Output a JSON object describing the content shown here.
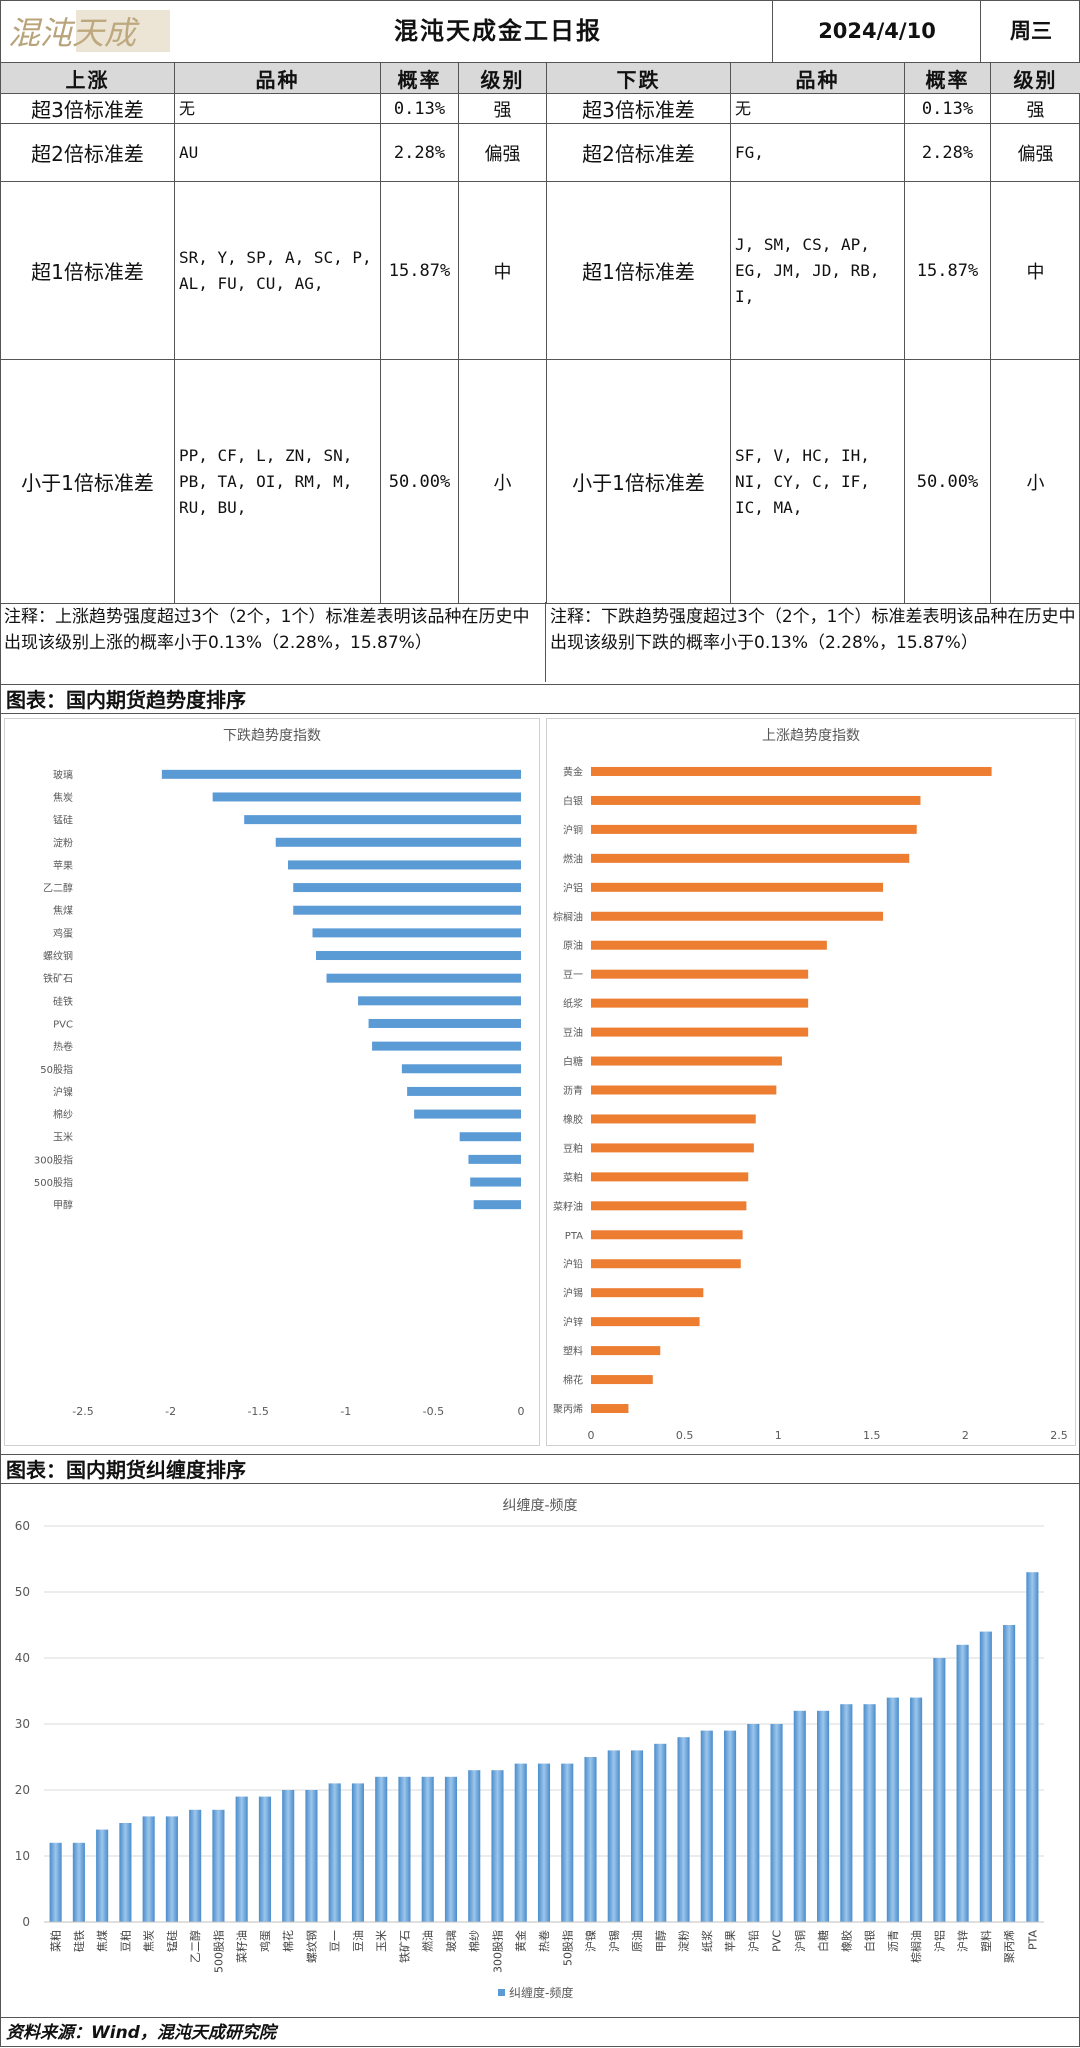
{
  "header": {
    "logo_text": "混沌天成",
    "title": "混沌天成金工日报",
    "date": "2024/4/10",
    "weekday": "周三"
  },
  "up_table": {
    "headers": [
      "上涨",
      "品种",
      "概率",
      "级别"
    ],
    "rows": [
      {
        "level": "超3倍标准差",
        "contracts": "无",
        "prob": "0.13%",
        "grade": "强"
      },
      {
        "level": "超2倍标准差",
        "contracts": "AU",
        "prob": "2.28%",
        "grade": "偏强"
      },
      {
        "level": "超1倍标准差",
        "contracts": "SR, Y, SP, A, SC, P, AL, FU, CU, AG,",
        "prob": "15.87%",
        "grade": "中"
      },
      {
        "level": "小于1倍标准差",
        "contracts": "PP, CF, L, ZN, SN, PB, TA, OI, RM, M, RU, BU,",
        "prob": "50.00%",
        "grade": "小"
      }
    ],
    "note": "注释：上涨趋势强度超过3个（2个，1个）标准差表明该品种在历史中出现该级别上涨的概率小于0.13%（2.28%，15.87%）"
  },
  "down_table": {
    "headers": [
      "下跌",
      "品种",
      "概率",
      "级别"
    ],
    "rows": [
      {
        "level": "超3倍标准差",
        "contracts": "无",
        "prob": "0.13%",
        "grade": "强"
      },
      {
        "level": "超2倍标准差",
        "contracts": "FG,",
        "prob": "2.28%",
        "grade": "偏强"
      },
      {
        "level": "超1倍标准差",
        "contracts": "J, SM, CS, AP, EG, JM, JD, RB, I,",
        "prob": "15.87%",
        "grade": "中"
      },
      {
        "level": "小于1倍标准差",
        "contracts": "SF, V, HC, IH, NI, CY, C, IF, IC, MA,",
        "prob": "50.00%",
        "grade": "小"
      }
    ],
    "note": "注释：下跌趋势强度超过3个（2个，1个）标准差表明该品种在历史中出现该级别下跌的概率小于0.13%（2.28%，15.87%）"
  },
  "section1_title": "图表：国内期货趋势度排序",
  "section2_title": "图表：国内期货纠缠度排序",
  "footer": "资料来源：Wind，混沌天成研究院",
  "colors": {
    "blue": "#5b9bd5",
    "orange": "#ed7d31",
    "axis": "#bfbfbf"
  },
  "chart_data": [
    {
      "type": "bar",
      "orientation": "horizontal",
      "title": "下跌趋势度指数",
      "categories": [
        "玻璃",
        "焦炭",
        "锰硅",
        "淀粉",
        "苹果",
        "乙二醇",
        "焦煤",
        "鸡蛋",
        "螺纹钢",
        "铁矿石",
        "硅铁",
        "PVC",
        "热卷",
        "50股指",
        "沪镍",
        "棉纱",
        "玉米",
        "300股指",
        "500股指",
        "甲醇"
      ],
      "values": [
        -2.05,
        -1.76,
        -1.58,
        -1.4,
        -1.33,
        -1.3,
        -1.3,
        -1.19,
        -1.17,
        -1.11,
        -0.93,
        -0.87,
        -0.85,
        -0.68,
        -0.65,
        -0.61,
        -0.35,
        -0.3,
        -0.29,
        -0.27
      ],
      "xlim": [
        -2.5,
        0
      ],
      "xticks": [
        "-2.5",
        "-2",
        "-1.5",
        "-1",
        "-0.5",
        "0"
      ]
    },
    {
      "type": "bar",
      "orientation": "horizontal",
      "title": "上涨趋势度指数",
      "categories": [
        "黄金",
        "白银",
        "沪铜",
        "燃油",
        "沪铝",
        "棕榈油",
        "原油",
        "豆一",
        "纸浆",
        "豆油",
        "白糖",
        "沥青",
        "橡胶",
        "豆粕",
        "菜粕",
        "菜籽油",
        "PTA",
        "沪铅",
        "沪锡",
        "沪锌",
        "塑料",
        "棉花",
        "聚丙烯"
      ],
      "values": [
        2.14,
        1.76,
        1.74,
        1.7,
        1.56,
        1.56,
        1.26,
        1.16,
        1.16,
        1.16,
        1.02,
        0.99,
        0.88,
        0.87,
        0.84,
        0.83,
        0.81,
        0.8,
        0.6,
        0.58,
        0.37,
        0.33,
        0.2
      ],
      "xlim": [
        0,
        2.5
      ],
      "xticks": [
        "0",
        "0.5",
        "1",
        "1.5",
        "2",
        "2.5"
      ]
    },
    {
      "type": "bar",
      "title": "纠缠度-频度",
      "legend": "纠缠度-频度",
      "categories": [
        "菜粕",
        "硅铁",
        "焦煤",
        "豆粕",
        "焦炭",
        "锰硅",
        "乙二醇",
        "500股指",
        "菜籽油",
        "鸡蛋",
        "棉花",
        "螺纹钢",
        "豆一",
        "豆油",
        "玉米",
        "铁矿石",
        "燃油",
        "玻璃",
        "棉纱",
        "300股指",
        "黄金",
        "热卷",
        "50股指",
        "沪镍",
        "沪锡",
        "原油",
        "甲醇",
        "淀粉",
        "纸浆",
        "苹果",
        "沪铅",
        "PVC",
        "沪铜",
        "白糖",
        "橡胶",
        "白银",
        "沥青",
        "棕榈油",
        "沪铝",
        "沪锌",
        "塑料",
        "聚丙烯",
        "PTA"
      ],
      "values": [
        12,
        12,
        14,
        15,
        16,
        16,
        17,
        17,
        19,
        19,
        20,
        20,
        21,
        21,
        22,
        22,
        22,
        22,
        23,
        23,
        24,
        24,
        24,
        25,
        26,
        26,
        27,
        28,
        29,
        29,
        30,
        30,
        32,
        32,
        33,
        33,
        34,
        34,
        40,
        42,
        44,
        45,
        53
      ],
      "ylim": [
        0,
        60
      ],
      "yticks": [
        "0",
        "10",
        "20",
        "30",
        "40",
        "50",
        "60"
      ]
    }
  ]
}
